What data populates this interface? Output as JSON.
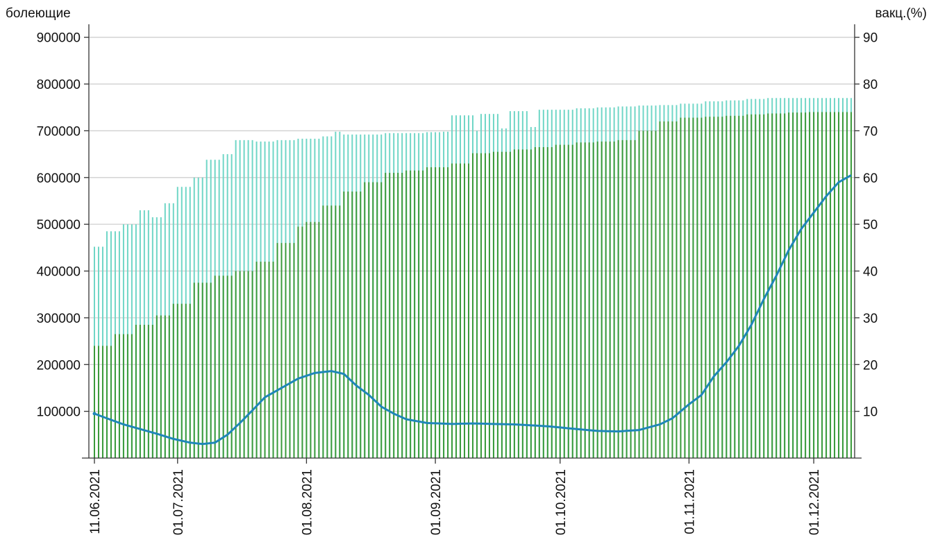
{
  "chart_data": {
    "type": "bar+line",
    "title": "",
    "left_axis_label": "болеющие",
    "right_axis_label": "вакц.(%)",
    "left_ylim": [
      0,
      950000
    ],
    "left_yticks": [
      "100000",
      "200000",
      "300000",
      "400000",
      "500000",
      "600000",
      "700000",
      "800000",
      "900000"
    ],
    "right_ylim": [
      0,
      95
    ],
    "right_yticks": [
      "10",
      "20",
      "30",
      "40",
      "50",
      "60",
      "70",
      "80",
      "90"
    ],
    "x_start": "2021-06-11",
    "x_end": "2021-12-10",
    "x_ticks": [
      {
        "date": "2021-06-11",
        "label": "11.06.2021"
      },
      {
        "date": "2021-07-01",
        "label": "01.07.2021"
      },
      {
        "date": "2021-08-01",
        "label": "01.08.2021"
      },
      {
        "date": "2021-09-01",
        "label": "01.09.2021"
      },
      {
        "date": "2021-10-01",
        "label": "01.10.2021"
      },
      {
        "date": "2021-11-01",
        "label": "01.11.2021"
      },
      {
        "date": "2021-12-01",
        "label": "01.12.2021"
      }
    ],
    "grid": true,
    "colors": {
      "green_bars": "#3a9a3a",
      "cyan_bars": "#6fd6c6",
      "line": "#1f86b8",
      "grid": "#cfcfcf",
      "axis": "#333333"
    },
    "series": [
      {
        "key": "green",
        "points": [
          [
            "2021-06-11",
            240000
          ],
          [
            "2021-06-16",
            265000
          ],
          [
            "2021-06-21",
            285000
          ],
          [
            "2021-06-26",
            305000
          ],
          [
            "2021-06-30",
            330000
          ],
          [
            "2021-07-05",
            375000
          ],
          [
            "2021-07-10",
            390000
          ],
          [
            "2021-07-15",
            400000
          ],
          [
            "2021-07-20",
            420000
          ],
          [
            "2021-07-25",
            460000
          ],
          [
            "2021-07-30",
            495000
          ],
          [
            "2021-08-01",
            505000
          ],
          [
            "2021-08-05",
            540000
          ],
          [
            "2021-08-10",
            570000
          ],
          [
            "2021-08-15",
            590000
          ],
          [
            "2021-08-20",
            610000
          ],
          [
            "2021-08-25",
            615000
          ],
          [
            "2021-08-30",
            622000
          ],
          [
            "2021-09-05",
            630000
          ],
          [
            "2021-09-10",
            652000
          ],
          [
            "2021-09-15",
            655000
          ],
          [
            "2021-09-20",
            660000
          ],
          [
            "2021-09-25",
            665000
          ],
          [
            "2021-09-30",
            670000
          ],
          [
            "2021-10-05",
            675000
          ],
          [
            "2021-10-10",
            677000
          ],
          [
            "2021-10-15",
            680000
          ],
          [
            "2021-10-20",
            700000
          ],
          [
            "2021-10-25",
            720000
          ],
          [
            "2021-10-30",
            728000
          ],
          [
            "2021-11-05",
            730000
          ],
          [
            "2021-11-10",
            732000
          ],
          [
            "2021-11-15",
            735000
          ],
          [
            "2021-11-20",
            737000
          ],
          [
            "2021-11-25",
            739000
          ],
          [
            "2021-11-30",
            740000
          ],
          [
            "2021-12-05",
            740000
          ],
          [
            "2021-12-10",
            740000
          ]
        ]
      },
      {
        "key": "cyan",
        "points": [
          [
            "2021-06-11",
            452000
          ],
          [
            "2021-06-14",
            485000
          ],
          [
            "2021-06-18",
            500000
          ],
          [
            "2021-06-22",
            530000
          ],
          [
            "2021-06-25",
            515000
          ],
          [
            "2021-06-28",
            545000
          ],
          [
            "2021-07-01",
            580000
          ],
          [
            "2021-07-05",
            600000
          ],
          [
            "2021-07-08",
            638000
          ],
          [
            "2021-07-12",
            650000
          ],
          [
            "2021-07-15",
            680000
          ],
          [
            "2021-07-20",
            677000
          ],
          [
            "2021-07-25",
            680000
          ],
          [
            "2021-07-30",
            683000
          ],
          [
            "2021-08-01",
            683000
          ],
          [
            "2021-08-05",
            688000
          ],
          [
            "2021-08-08",
            698000
          ],
          [
            "2021-08-10",
            692000
          ],
          [
            "2021-08-15",
            692000
          ],
          [
            "2021-08-20",
            695000
          ],
          [
            "2021-08-25",
            695000
          ],
          [
            "2021-08-30",
            697000
          ],
          [
            "2021-09-03",
            698000
          ],
          [
            "2021-09-05",
            733000
          ],
          [
            "2021-09-09",
            733000
          ],
          [
            "2021-09-11",
            700000
          ],
          [
            "2021-09-12",
            736000
          ],
          [
            "2021-09-15",
            736000
          ],
          [
            "2021-09-17",
            705000
          ],
          [
            "2021-09-19",
            742000
          ],
          [
            "2021-09-22",
            742000
          ],
          [
            "2021-09-24",
            708000
          ],
          [
            "2021-09-26",
            745000
          ],
          [
            "2021-09-30",
            745000
          ],
          [
            "2021-10-05",
            748000
          ],
          [
            "2021-10-10",
            750000
          ],
          [
            "2021-10-15",
            752000
          ],
          [
            "2021-10-20",
            754000
          ],
          [
            "2021-10-25",
            755000
          ],
          [
            "2021-10-30",
            758000
          ],
          [
            "2021-11-05",
            763000
          ],
          [
            "2021-11-10",
            765000
          ],
          [
            "2021-11-15",
            768000
          ],
          [
            "2021-11-20",
            770000
          ],
          [
            "2021-11-25",
            770000
          ],
          [
            "2021-11-30",
            770000
          ],
          [
            "2021-12-05",
            770000
          ],
          [
            "2021-12-10",
            770000
          ]
        ]
      },
      {
        "key": "line",
        "axis": "right",
        "points": [
          [
            "2021-06-11",
            9.5
          ],
          [
            "2021-06-14",
            8.5
          ],
          [
            "2021-06-18",
            7.2
          ],
          [
            "2021-06-22",
            6.2
          ],
          [
            "2021-06-26",
            5.2
          ],
          [
            "2021-06-30",
            4.1
          ],
          [
            "2021-07-04",
            3.3
          ],
          [
            "2021-07-07",
            3.0
          ],
          [
            "2021-07-10",
            3.3
          ],
          [
            "2021-07-13",
            5.0
          ],
          [
            "2021-07-16",
            7.5
          ],
          [
            "2021-07-19",
            10.2
          ],
          [
            "2021-07-22",
            13.0
          ],
          [
            "2021-07-26",
            15.0
          ],
          [
            "2021-07-30",
            17.0
          ],
          [
            "2021-08-03",
            18.2
          ],
          [
            "2021-08-07",
            18.6
          ],
          [
            "2021-08-10",
            18.0
          ],
          [
            "2021-08-13",
            15.5
          ],
          [
            "2021-08-16",
            13.5
          ],
          [
            "2021-08-19",
            11.0
          ],
          [
            "2021-08-22",
            9.5
          ],
          [
            "2021-08-25",
            8.3
          ],
          [
            "2021-08-30",
            7.5
          ],
          [
            "2021-09-05",
            7.3
          ],
          [
            "2021-09-10",
            7.4
          ],
          [
            "2021-09-20",
            7.2
          ],
          [
            "2021-09-28",
            6.8
          ],
          [
            "2021-10-05",
            6.2
          ],
          [
            "2021-10-10",
            5.8
          ],
          [
            "2021-10-15",
            5.7
          ],
          [
            "2021-10-20",
            6.0
          ],
          [
            "2021-10-25",
            7.2
          ],
          [
            "2021-10-28",
            8.5
          ],
          [
            "2021-11-01",
            11.5
          ],
          [
            "2021-11-04",
            13.5
          ],
          [
            "2021-11-07",
            17.5
          ],
          [
            "2021-11-10",
            20.5
          ],
          [
            "2021-11-13",
            24.0
          ],
          [
            "2021-11-16",
            28.5
          ],
          [
            "2021-11-19",
            34.0
          ],
          [
            "2021-11-22",
            39.0
          ],
          [
            "2021-11-25",
            44.5
          ],
          [
            "2021-11-28",
            49.0
          ],
          [
            "2021-12-01",
            52.5
          ],
          [
            "2021-12-04",
            56.0
          ],
          [
            "2021-12-07",
            59.0
          ],
          [
            "2021-12-10",
            60.5
          ]
        ]
      }
    ]
  }
}
